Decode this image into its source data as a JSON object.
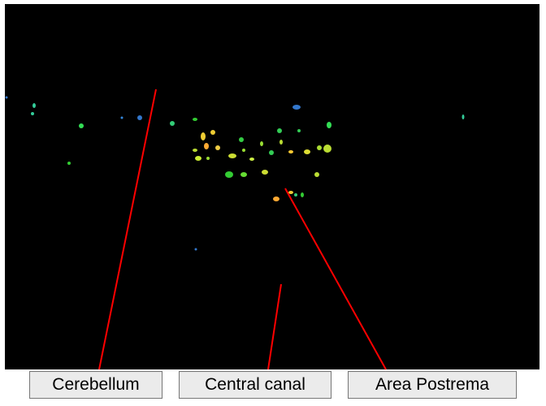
{
  "labels": [
    "Cerebellum",
    "Central canal",
    "Area Postrema"
  ]
}
